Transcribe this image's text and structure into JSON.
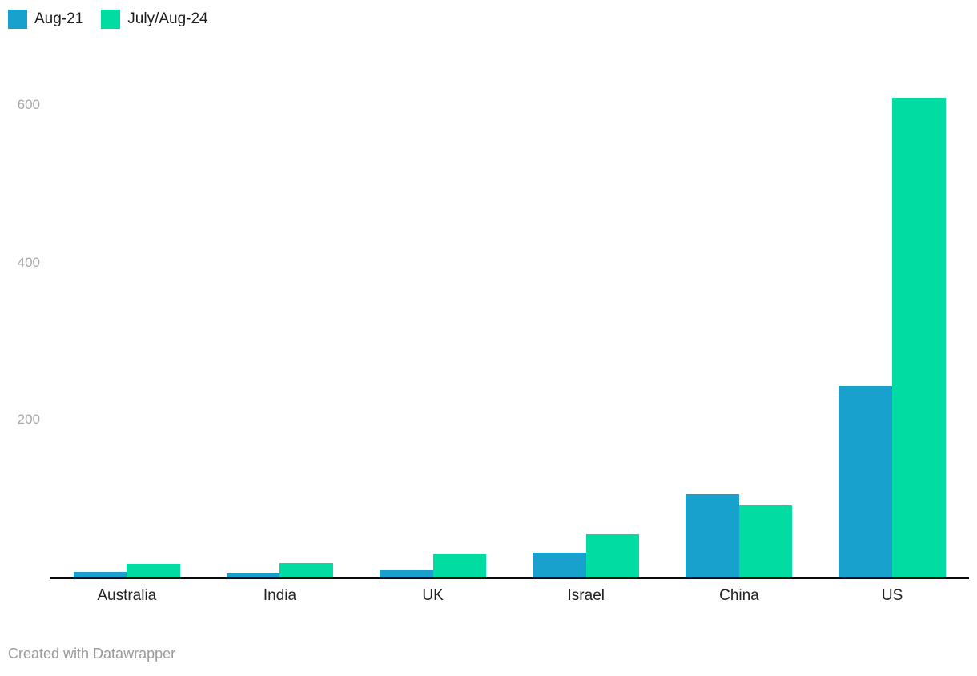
{
  "chart_data": {
    "type": "bar",
    "categories": [
      "Australia",
      "India",
      "UK",
      "Israel",
      "China",
      "US"
    ],
    "series": [
      {
        "name": "Aug-21",
        "color": "#18a1cd",
        "values": [
          7,
          5,
          9,
          32,
          106,
          243
        ]
      },
      {
        "name": "July/Aug-24",
        "color": "#00dca2",
        "values": [
          17,
          18,
          29,
          55,
          92,
          609
        ]
      }
    ],
    "title": "",
    "xlabel": "",
    "ylabel": "",
    "yticks": [
      200,
      400,
      600
    ],
    "ylim": [
      0,
      650
    ],
    "grid": "none",
    "legend_position": "top-left"
  },
  "legend": {
    "items": [
      {
        "label": "Aug-21",
        "color": "#18a1cd"
      },
      {
        "label": "July/Aug-24",
        "color": "#00dca2"
      }
    ]
  },
  "axis": {
    "tick_labels": [
      "200",
      "400",
      "600"
    ],
    "tick_color": "#a8a8a8",
    "baseline_color": "#0a0a0a"
  },
  "footer": {
    "credit": "Created with Datawrapper"
  }
}
